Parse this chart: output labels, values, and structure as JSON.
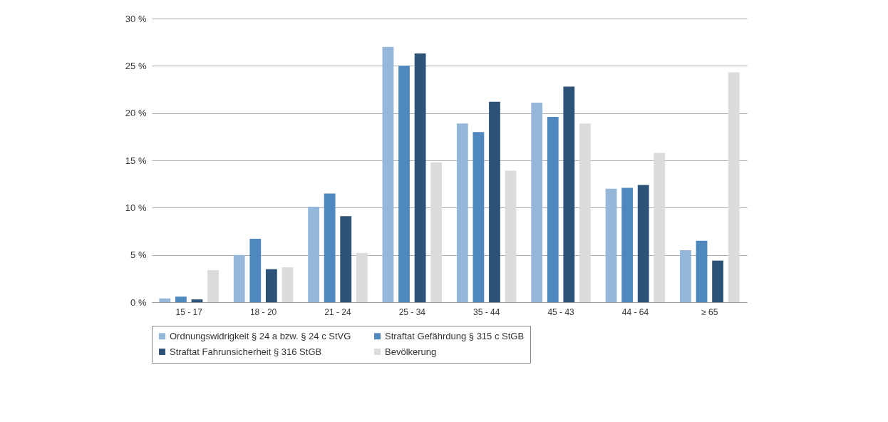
{
  "chart_data": {
    "type": "bar",
    "categories": [
      "15 - 17",
      "18 - 20",
      "21 - 24",
      "25 - 34",
      "35 - 44",
      "45 - 43",
      "44 - 64",
      "≥ 65"
    ],
    "series": [
      {
        "name": "Ordnungswidrigkeit § 24 a bzw. § 24 c StVG",
        "color": "#95b7da",
        "values": [
          0.4,
          5.0,
          10.1,
          27.0,
          18.9,
          21.1,
          12.0,
          5.5
        ]
      },
      {
        "name": "Straftat Gefährdung § 315 c StGB",
        "color": "#4f88bf",
        "values": [
          0.6,
          6.7,
          11.5,
          25.0,
          18.0,
          19.6,
          12.1,
          6.5
        ]
      },
      {
        "name": "Straftat Fahrunsicherheit § 316 StGB",
        "color": "#2c5277",
        "values": [
          0.3,
          3.5,
          9.1,
          26.3,
          21.2,
          22.8,
          12.4,
          4.4
        ]
      },
      {
        "name": "Bevölkerung",
        "color": "#dcdcdc",
        "values": [
          3.4,
          3.7,
          5.2,
          14.8,
          13.9,
          18.9,
          15.8,
          24.3
        ]
      }
    ],
    "ylim": [
      0,
      30
    ],
    "yticks": [
      {
        "value": 0,
        "label": "0 %"
      },
      {
        "value": 5,
        "label": "5 %"
      },
      {
        "value": 10,
        "label": "10 %"
      },
      {
        "value": 15,
        "label": "15 %"
      },
      {
        "value": 20,
        "label": "20 %"
      },
      {
        "value": 25,
        "label": "25 %"
      },
      {
        "value": 30,
        "label": "30 %"
      }
    ],
    "grid": "y",
    "legend": "bottom"
  }
}
